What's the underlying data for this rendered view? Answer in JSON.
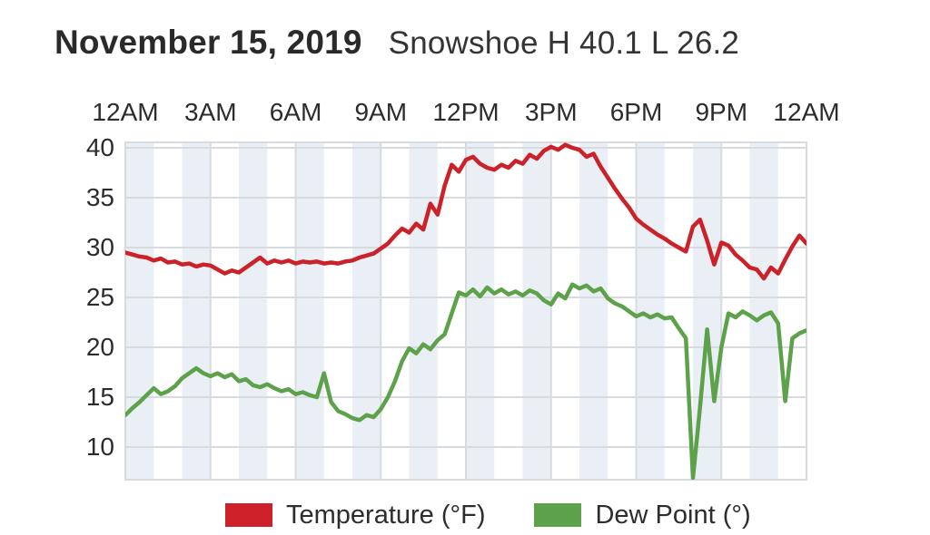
{
  "header": {
    "date": "November 15, 2019",
    "station_summary": "Snowshoe H 40.1 L 26.2"
  },
  "legend": [
    {
      "label": "Temperature (°F)",
      "color": "#cc2128"
    },
    {
      "label": "Dew Point (°)",
      "color": "#5da14b"
    }
  ],
  "chart_data": {
    "type": "line",
    "title": "November 15, 2019 — Snowshoe H 40.1 L 26.2",
    "x_tick_labels": [
      "12AM",
      "3AM",
      "6AM",
      "9AM",
      "12PM",
      "3PM",
      "6PM",
      "9PM",
      "12AM"
    ],
    "y_tick_labels": [
      "40",
      "35",
      "30",
      "25",
      "20",
      "15",
      "10"
    ],
    "y_tick_values": [
      40,
      35,
      30,
      25,
      20,
      15,
      10
    ],
    "xlim_hours": [
      0,
      24
    ],
    "ylim": [
      6.7,
      40.5
    ],
    "x_step_hours": 0.25,
    "grid": true,
    "band_fill": "#e9eff5",
    "grid_color": "#d7dbde",
    "series": [
      {
        "name": "Temperature (°F)",
        "color": "#cc2128",
        "values": [
          29.5,
          29.3,
          29.1,
          29.0,
          28.7,
          28.9,
          28.5,
          28.6,
          28.3,
          28.4,
          28.1,
          28.3,
          28.2,
          27.8,
          27.4,
          27.7,
          27.5,
          28.0,
          28.5,
          29.0,
          28.4,
          28.7,
          28.5,
          28.7,
          28.4,
          28.6,
          28.5,
          28.6,
          28.4,
          28.5,
          28.4,
          28.6,
          28.7,
          29.0,
          29.2,
          29.4,
          29.9,
          30.4,
          31.2,
          31.9,
          31.5,
          32.4,
          31.8,
          34.4,
          33.3,
          36.2,
          38.3,
          37.6,
          38.8,
          39.1,
          38.4,
          38.0,
          37.8,
          38.3,
          38.0,
          38.7,
          38.4,
          39.3,
          38.9,
          39.7,
          40.1,
          39.8,
          40.3,
          40.0,
          39.8,
          39.1,
          39.4,
          38.1,
          37.0,
          35.9,
          34.9,
          34.0,
          32.9,
          32.3,
          31.8,
          31.3,
          30.9,
          30.4,
          30.0,
          29.6,
          32.1,
          32.8,
          30.7,
          28.3,
          30.5,
          30.2,
          29.3,
          28.7,
          28.0,
          27.8,
          26.9,
          28.0,
          27.4,
          28.8,
          30.1,
          31.2,
          30.4
        ]
      },
      {
        "name": "Dew Point (°)",
        "color": "#5da14b",
        "values": [
          13.2,
          13.9,
          14.5,
          15.2,
          15.9,
          15.3,
          15.6,
          16.1,
          16.9,
          17.4,
          17.9,
          17.4,
          17.1,
          17.4,
          17.0,
          17.3,
          16.6,
          16.8,
          16.2,
          16.0,
          16.3,
          15.9,
          15.6,
          15.8,
          15.3,
          15.5,
          15.2,
          15.0,
          17.4,
          14.5,
          13.6,
          13.3,
          12.9,
          12.7,
          13.2,
          13.0,
          13.8,
          15.0,
          16.6,
          18.6,
          19.9,
          19.4,
          20.3,
          19.8,
          20.7,
          21.3,
          23.4,
          25.5,
          25.2,
          25.8,
          25.1,
          26.0,
          25.4,
          25.8,
          25.3,
          25.6,
          25.2,
          25.7,
          25.4,
          24.7,
          24.3,
          25.4,
          24.9,
          26.3,
          25.9,
          26.2,
          25.6,
          25.9,
          24.9,
          24.4,
          24.1,
          23.6,
          23.1,
          23.4,
          23.0,
          23.3,
          22.9,
          23.0,
          21.9,
          20.9,
          6.9,
          14.0,
          21.8,
          14.6,
          20.0,
          23.4,
          23.0,
          23.6,
          23.2,
          22.7,
          23.2,
          23.5,
          22.4,
          14.6,
          20.9,
          21.4,
          21.7
        ]
      }
    ]
  }
}
